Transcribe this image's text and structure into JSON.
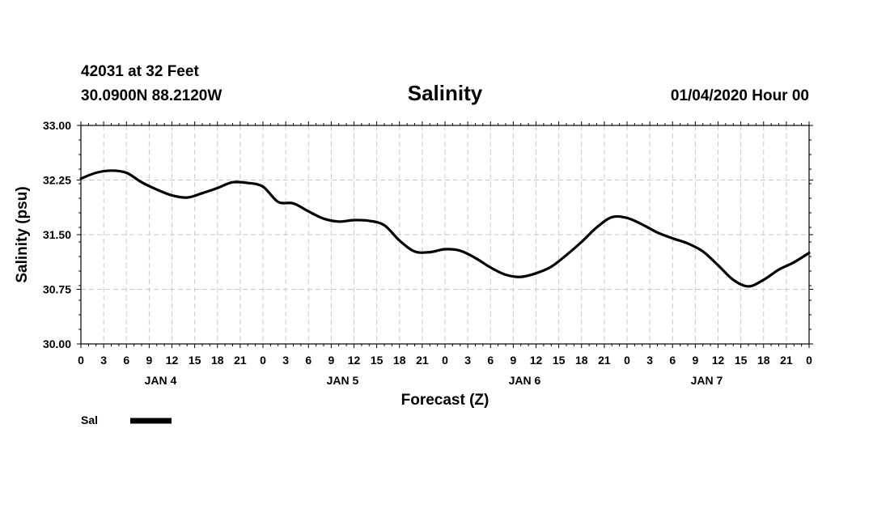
{
  "header": {
    "station": "42031 at 32 Feet",
    "location": "30.0900N 88.2120W",
    "datetime": "01/04/2020 Hour 00"
  },
  "chart_data": {
    "type": "line",
    "title": "Salinity",
    "xlabel": "Forecast (Z)",
    "ylabel": "Salinity (psu)",
    "ylim": [
      30.0,
      33.0
    ],
    "xlim": [
      0,
      96
    ],
    "grid": true,
    "y_ticks": [
      "30.00",
      "30.75",
      "31.50",
      "32.25",
      "33.00"
    ],
    "x_tick_labels": [
      "0",
      "3",
      "6",
      "9",
      "12",
      "15",
      "18",
      "21",
      "0",
      "3",
      "6",
      "9",
      "12",
      "15",
      "18",
      "21",
      "0",
      "3",
      "6",
      "9",
      "12",
      "15",
      "18",
      "21",
      "0",
      "3",
      "6",
      "9",
      "12",
      "15",
      "18",
      "21",
      "0"
    ],
    "day_labels": [
      "JAN 4",
      "JAN 5",
      "JAN 6",
      "JAN 7"
    ],
    "legend": {
      "position": "bottom-left",
      "entries": [
        "Sal"
      ]
    },
    "series": [
      {
        "name": "Sal",
        "color": "#000000",
        "x": [
          0,
          2,
          4,
          6,
          8,
          10,
          12,
          14,
          16,
          18,
          20,
          22,
          24,
          26,
          28,
          30,
          32,
          34,
          36,
          38,
          40,
          42,
          44,
          46,
          48,
          50,
          52,
          54,
          56,
          58,
          60,
          62,
          64,
          66,
          68,
          70,
          72,
          74,
          76,
          78,
          80,
          82,
          84,
          86,
          88,
          90,
          92,
          94,
          96
        ],
        "values": [
          32.27,
          32.35,
          32.38,
          32.35,
          32.22,
          32.12,
          32.04,
          32.01,
          32.07,
          32.14,
          32.22,
          32.21,
          32.16,
          31.95,
          31.93,
          31.82,
          31.72,
          31.68,
          31.7,
          31.69,
          31.63,
          31.42,
          31.27,
          31.26,
          31.3,
          31.28,
          31.18,
          31.05,
          30.95,
          30.92,
          30.97,
          31.06,
          31.22,
          31.4,
          31.6,
          31.74,
          31.73,
          31.64,
          31.53,
          31.45,
          31.38,
          31.27,
          31.08,
          30.88,
          30.79,
          30.88,
          31.02,
          31.12,
          31.25
        ]
      }
    ]
  }
}
